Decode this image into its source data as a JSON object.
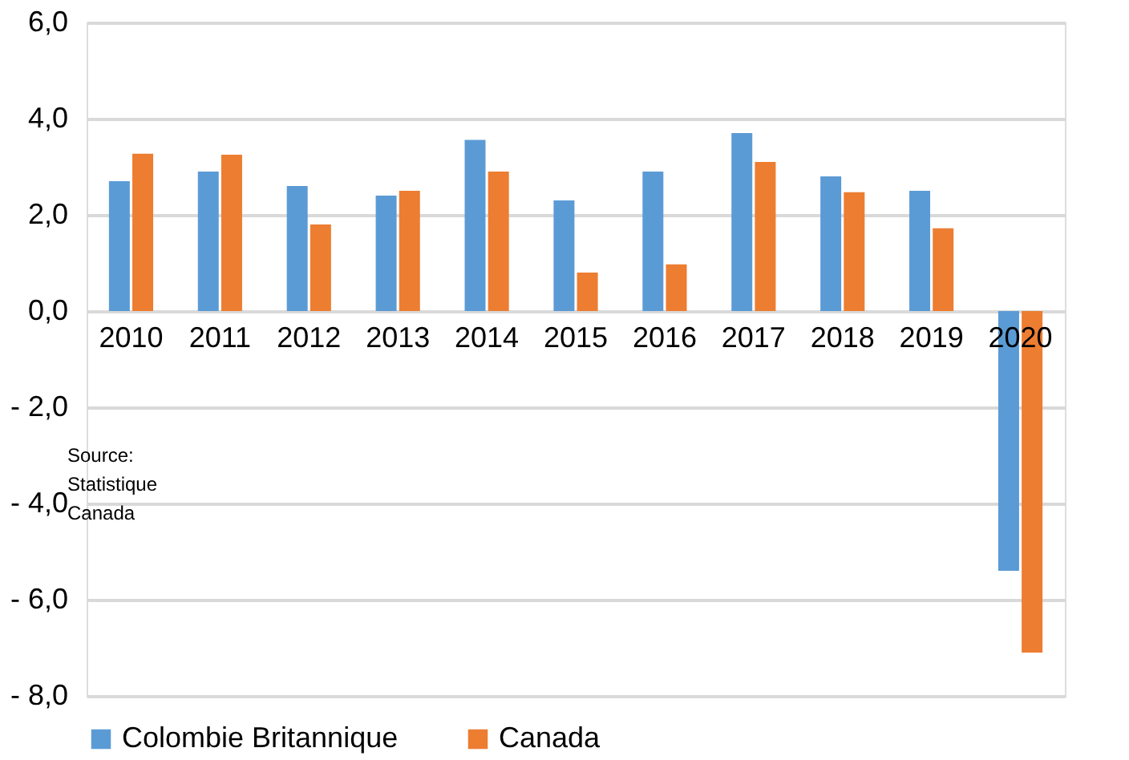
{
  "chart_data": {
    "type": "bar",
    "categories": [
      "2010",
      "2011",
      "2012",
      "2013",
      "2014",
      "2015",
      "2016",
      "2017",
      "2018",
      "2019",
      "2020"
    ],
    "series": [
      {
        "name": "Colombie Britannique",
        "color": "#5b9bd5",
        "values": [
          2.7,
          2.9,
          2.6,
          2.4,
          3.56,
          2.3,
          2.9,
          3.7,
          2.8,
          2.5,
          -5.4
        ]
      },
      {
        "name": "Canada",
        "color": "#ed7d31",
        "values": [
          3.27,
          3.25,
          1.8,
          2.5,
          2.9,
          0.8,
          0.97,
          3.1,
          2.47,
          1.72,
          -7.1
        ]
      }
    ],
    "ylim": [
      -8,
      6
    ],
    "yticks": [
      {
        "value": -8,
        "label": "- 8,0"
      },
      {
        "value": -6,
        "label": "- 6,0"
      },
      {
        "value": -4,
        "label": "- 4,0"
      },
      {
        "value": -2,
        "label": "- 2,0"
      },
      {
        "value": 0,
        "label": "0,0"
      },
      {
        "value": 2,
        "label": "2,0"
      },
      {
        "value": 4,
        "label": "4,0"
      },
      {
        "value": 6,
        "label": "6,0"
      }
    ],
    "grid": "y",
    "legend": "bottom",
    "annotations": [
      "Source: Statistique Canada"
    ]
  }
}
